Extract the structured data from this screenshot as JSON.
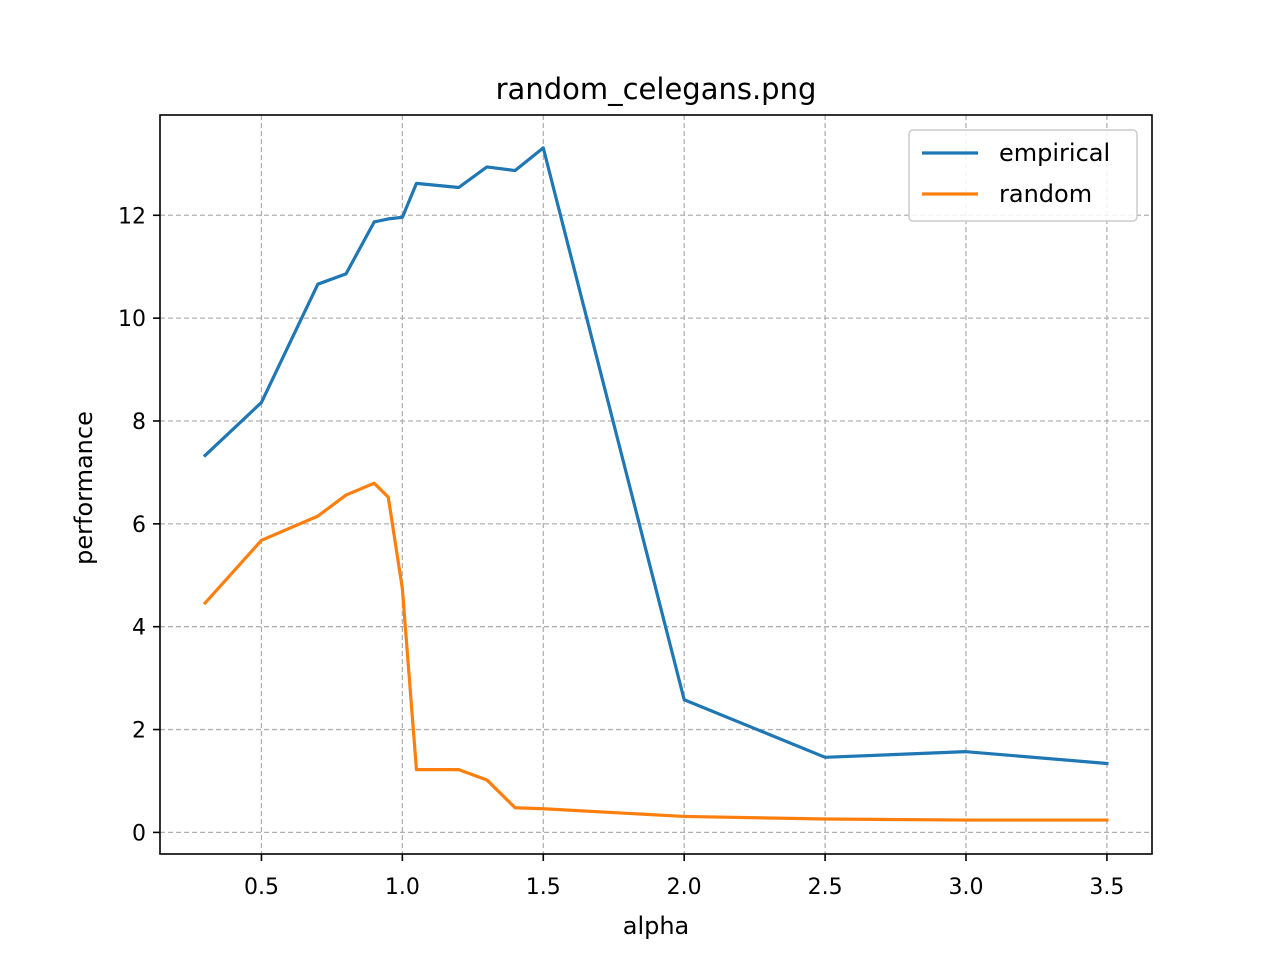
{
  "chart_data": {
    "type": "line",
    "title": "random_celegans.png",
    "xlabel": "alpha",
    "ylabel": "performance",
    "xlim": [
      0.14,
      3.66
    ],
    "ylim": [
      -0.42,
      13.95
    ],
    "xticks": [
      0.5,
      1.0,
      1.5,
      2.0,
      2.5,
      3.0,
      3.5
    ],
    "xtick_labels": [
      "0.5",
      "1.0",
      "1.5",
      "2.0",
      "2.5",
      "3.0",
      "3.5"
    ],
    "yticks": [
      0,
      2,
      4,
      6,
      8,
      10,
      12
    ],
    "ytick_labels": [
      "0",
      "2",
      "4",
      "6",
      "8",
      "10",
      "12"
    ],
    "grid": true,
    "legend_position": "top-right",
    "series": [
      {
        "name": "empirical",
        "color": "#1f77b4",
        "x": [
          0.3,
          0.5,
          0.7,
          0.8,
          0.9,
          0.95,
          1.0,
          1.05,
          1.2,
          1.3,
          1.4,
          1.5,
          2.0,
          2.5,
          3.0,
          3.5
        ],
        "y": [
          7.33,
          8.36,
          10.66,
          10.86,
          11.87,
          11.93,
          11.96,
          12.62,
          12.54,
          12.94,
          12.87,
          13.31,
          2.58,
          1.46,
          1.57,
          1.34
        ]
      },
      {
        "name": "random",
        "color": "#ff7f0e",
        "x": [
          0.3,
          0.5,
          0.7,
          0.8,
          0.9,
          0.95,
          1.0,
          1.05,
          1.2,
          1.3,
          1.4,
          1.5,
          2.0,
          2.5,
          3.0,
          3.5
        ],
        "y": [
          4.46,
          5.68,
          6.15,
          6.56,
          6.79,
          6.52,
          4.74,
          1.22,
          1.22,
          1.02,
          0.48,
          0.46,
          0.31,
          0.26,
          0.24,
          0.24
        ]
      }
    ]
  }
}
